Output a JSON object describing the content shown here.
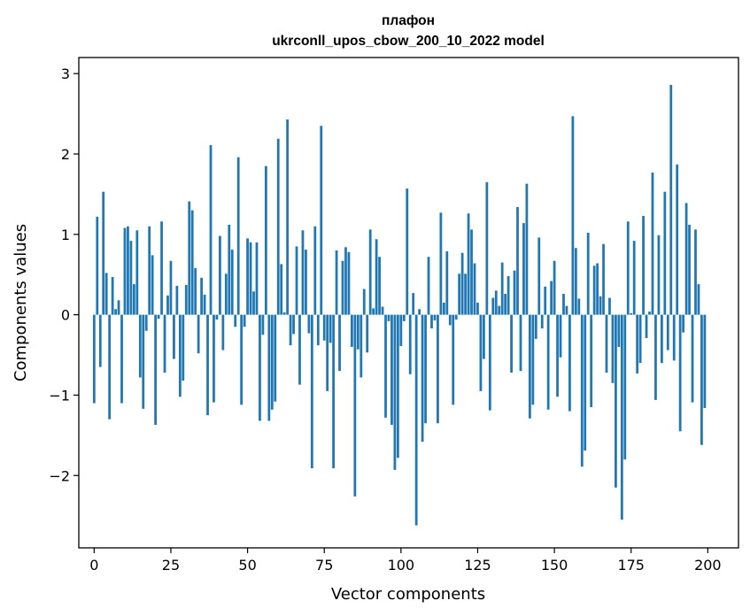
{
  "chart_data": {
    "type": "bar",
    "title": "плафон",
    "subtitle": "ukrconll_upos_cbow_200_10_2022 model",
    "xlabel": "Vector components",
    "ylabel": "Components values",
    "xlim": [
      -5,
      210
    ],
    "ylim": [
      -2.9,
      3.2
    ],
    "xticks": [
      0,
      25,
      50,
      75,
      100,
      125,
      150,
      175,
      200
    ],
    "yticks": [
      -2,
      -1,
      0,
      1,
      2,
      3
    ],
    "grid": false,
    "legend": "none",
    "bar_color": "#1f77b4",
    "values": [
      -1.1,
      1.22,
      -0.65,
      1.53,
      0.52,
      -1.3,
      0.47,
      0.07,
      0.18,
      -1.1,
      1.08,
      1.1,
      0.92,
      0.38,
      1.05,
      -0.78,
      -1.17,
      -0.2,
      1.1,
      0.74,
      -1.37,
      -0.05,
      1.16,
      -0.72,
      0.24,
      0.67,
      -0.55,
      0.36,
      -1.02,
      -0.82,
      0.37,
      1.41,
      1.3,
      0.58,
      -0.48,
      0.46,
      0.25,
      -1.25,
      2.11,
      -1.09,
      -0.06,
      0.98,
      -0.44,
      0.51,
      1.12,
      0.81,
      -0.15,
      1.96,
      -1.12,
      -0.15,
      0.95,
      0.9,
      0.29,
      0.9,
      -1.32,
      -0.25,
      1.85,
      -1.32,
      -1.18,
      -1.08,
      2.19,
      0.63,
      0.03,
      2.43,
      -0.38,
      -0.24,
      0.85,
      -0.87,
      1.05,
      0.81,
      -0.23,
      -1.91,
      1.1,
      -0.38,
      2.35,
      -0.32,
      -0.95,
      -0.35,
      -1.91,
      0.8,
      -0.7,
      0.67,
      0.84,
      0.78,
      -0.4,
      -2.26,
      -0.43,
      -0.78,
      0.32,
      -0.47,
      1.06,
      0.08,
      0.94,
      0.72,
      0.1,
      -1.28,
      -0.08,
      -1.37,
      -1.93,
      -1.78,
      -0.39,
      -0.08,
      1.57,
      -0.74,
      0.27,
      -2.62,
      0.07,
      -1.58,
      -1.35,
      0.72,
      -0.17,
      -0.07,
      -1.35,
      1.27,
      0.15,
      0.79,
      -0.13,
      -1.12,
      -0.06,
      0.51,
      0.77,
      0.51,
      1.26,
      1.06,
      0.64,
      0.15,
      -0.95,
      -0.55,
      1.65,
      -1.19,
      0.21,
      0.3,
      0.11,
      0.65,
      0.26,
      0.48,
      -0.72,
      0.55,
      1.34,
      -0.7,
      1.14,
      1.63,
      -1.29,
      -1.12,
      -0.3,
      0.96,
      -0.17,
      0.35,
      -1.18,
      0.42,
      0.67,
      -1.02,
      -0.53,
      0.26,
      0.11,
      -1.2,
      2.47,
      0.83,
      0.2,
      -1.89,
      -1.69,
      1.02,
      -1.15,
      0.61,
      0.64,
      0.23,
      0.88,
      -0.72,
      0.21,
      -0.85,
      -2.15,
      -0.4,
      -2.55,
      -1.8,
      1.16,
      0.02,
      0.92,
      -0.73,
      -0.6,
      1.23,
      -0.29,
      0.04,
      1.77,
      -1.06,
      0.99,
      -0.6,
      1.53,
      -0.44,
      2.86,
      -0.57,
      1.87,
      -1.45,
      -0.22,
      1.39,
      1.12,
      -1.09,
      1.06,
      0.38,
      -1.62,
      -1.16
    ]
  }
}
